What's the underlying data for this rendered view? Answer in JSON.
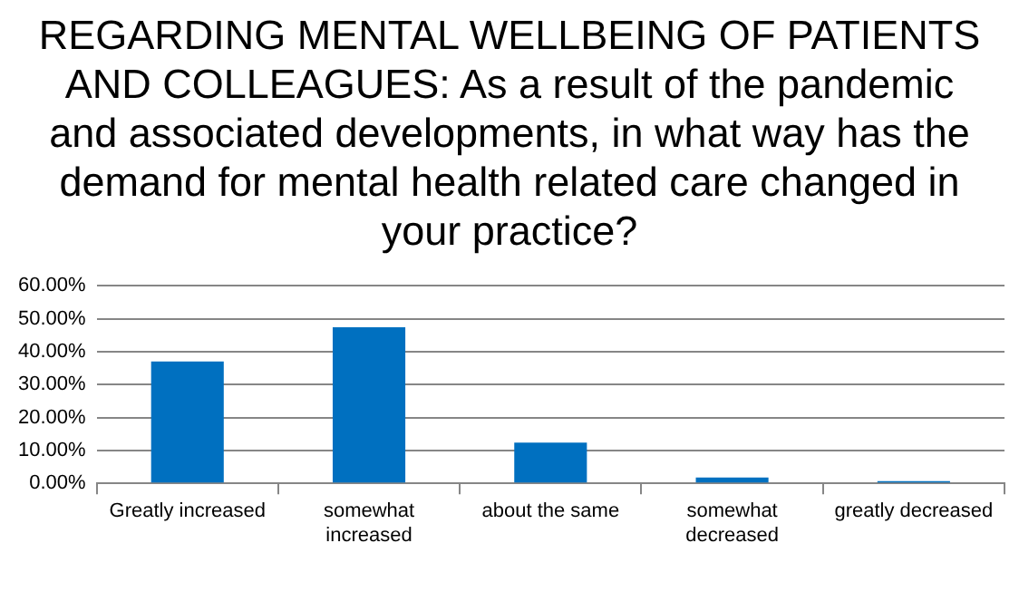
{
  "chart_data": {
    "type": "bar",
    "title": "REGARDING MENTAL WELLBEING OF PATIENTS AND COLLEAGUES: As a result of the pandemic and associated developments, in what way has the demand for mental health related care changed in your practice?",
    "categories": [
      "Greatly increased",
      "somewhat increased",
      "about the same",
      "somewhat decreased",
      "greatly decreased"
    ],
    "values": [
      37.0,
      47.4,
      12.4,
      1.8,
      0.7
    ],
    "color": "#0070c0",
    "ylim": [
      0,
      60
    ],
    "yticks": [
      {
        "value": 0,
        "label": "0.00%"
      },
      {
        "value": 10,
        "label": "10.00%"
      },
      {
        "value": 20,
        "label": "20.00%"
      },
      {
        "value": 30,
        "label": "30.00%"
      },
      {
        "value": 40,
        "label": "40.00%"
      },
      {
        "value": 50,
        "label": "50.00%"
      },
      {
        "value": 60,
        "label": "60.00%"
      }
    ],
    "grid": "y",
    "legend": false
  }
}
